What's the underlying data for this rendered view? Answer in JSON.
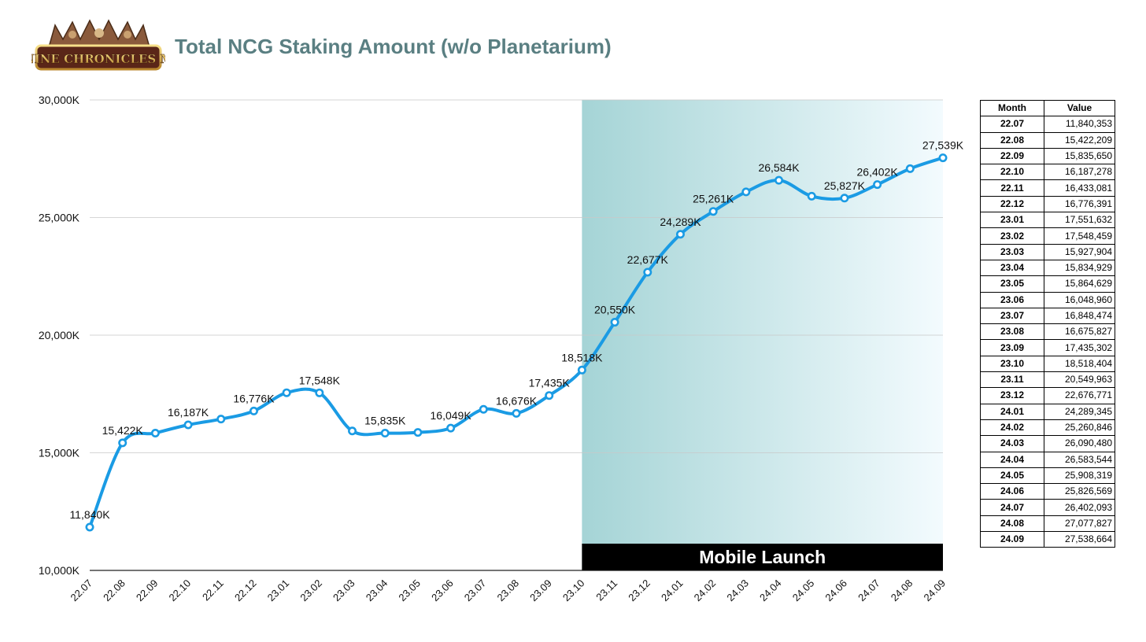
{
  "logo_text": "NINE CHRONICLES M",
  "colors": {
    "title": "#5a7f82",
    "line": "#1a9be4",
    "shade_start": "#a5d4d6",
    "shade_end": "#f3fbfe",
    "banner": "#000000"
  },
  "chart_data": {
    "type": "line",
    "title": "Total NCG Staking Amount (w/o Planetarium)",
    "xlabel": "",
    "ylabel": "",
    "ylim": [
      10000,
      30000
    ],
    "yticks": [
      "10,000K",
      "15,000K",
      "20,000K",
      "25,000K",
      "30,000K"
    ],
    "ytick_values": [
      10000,
      15000,
      20000,
      25000,
      30000
    ],
    "categories": [
      "22.07",
      "22.08",
      "22.09",
      "22.10",
      "22.11",
      "22.12",
      "23.01",
      "23.02",
      "23.03",
      "23.04",
      "23.05",
      "23.06",
      "23.07",
      "23.08",
      "23.09",
      "23.10",
      "23.11",
      "23.12",
      "24.01",
      "24.02",
      "24.03",
      "24.04",
      "24.05",
      "24.06",
      "24.07",
      "24.08",
      "24.09"
    ],
    "series": [
      {
        "name": "Total NCG Staking Amount (K)",
        "values": [
          11840,
          15422,
          15836,
          16187,
          16433,
          16776,
          17552,
          17548,
          15928,
          15835,
          15865,
          16049,
          16848,
          16676,
          17435,
          18518,
          20550,
          22677,
          24289,
          25261,
          26090,
          26584,
          25908,
          25827,
          26402,
          27078,
          27539
        ]
      }
    ],
    "data_labels": [
      {
        "index": 0,
        "text": "11,840K"
      },
      {
        "index": 1,
        "text": "15,422K"
      },
      {
        "index": 3,
        "text": "16,187K"
      },
      {
        "index": 5,
        "text": "16,776K"
      },
      {
        "index": 7,
        "text": "17,548K"
      },
      {
        "index": 9,
        "text": "15,835K"
      },
      {
        "index": 11,
        "text": "16,049K"
      },
      {
        "index": 13,
        "text": "16,676K"
      },
      {
        "index": 14,
        "text": "17,435K"
      },
      {
        "index": 15,
        "text": "18,518K"
      },
      {
        "index": 16,
        "text": "20,550K"
      },
      {
        "index": 17,
        "text": "22,677K"
      },
      {
        "index": 18,
        "text": "24,289K"
      },
      {
        "index": 19,
        "text": "25,261K"
      },
      {
        "index": 21,
        "text": "26,584K"
      },
      {
        "index": 23,
        "text": "25,827K"
      },
      {
        "index": 24,
        "text": "26,402K"
      },
      {
        "index": 26,
        "text": "27,539K"
      }
    ],
    "highlight": {
      "from": "23.10",
      "to": "24.09",
      "label": "Mobile Launch"
    },
    "table": {
      "headers": [
        "Month",
        "Value"
      ],
      "rows": [
        [
          "22.07",
          "11,840,353"
        ],
        [
          "22.08",
          "15,422,209"
        ],
        [
          "22.09",
          "15,835,650"
        ],
        [
          "22.10",
          "16,187,278"
        ],
        [
          "22.11",
          "16,433,081"
        ],
        [
          "22.12",
          "16,776,391"
        ],
        [
          "23.01",
          "17,551,632"
        ],
        [
          "23.02",
          "17,548,459"
        ],
        [
          "23.03",
          "15,927,904"
        ],
        [
          "23.04",
          "15,834,929"
        ],
        [
          "23.05",
          "15,864,629"
        ],
        [
          "23.06",
          "16,048,960"
        ],
        [
          "23.07",
          "16,848,474"
        ],
        [
          "23.08",
          "16,675,827"
        ],
        [
          "23.09",
          "17,435,302"
        ],
        [
          "23.10",
          "18,518,404"
        ],
        [
          "23.11",
          "20,549,963"
        ],
        [
          "23.12",
          "22,676,771"
        ],
        [
          "24.01",
          "24,289,345"
        ],
        [
          "24.02",
          "25,260,846"
        ],
        [
          "24.03",
          "26,090,480"
        ],
        [
          "24.04",
          "26,583,544"
        ],
        [
          "24.05",
          "25,908,319"
        ],
        [
          "24.06",
          "25,826,569"
        ],
        [
          "24.07",
          "26,402,093"
        ],
        [
          "24.08",
          "27,077,827"
        ],
        [
          "24.09",
          "27,538,664"
        ]
      ]
    }
  }
}
